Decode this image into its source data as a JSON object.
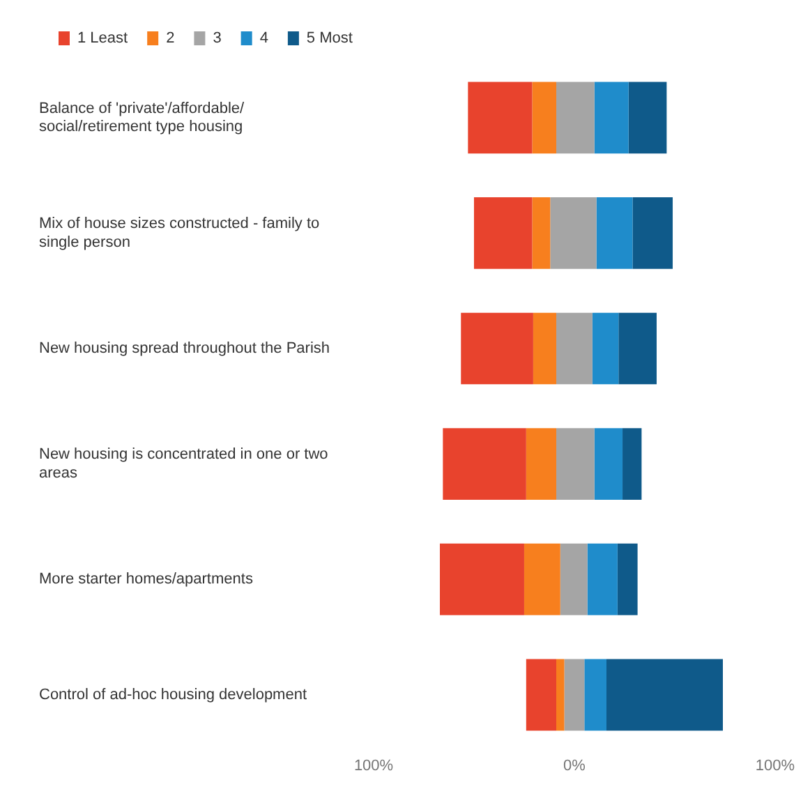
{
  "chart_data": {
    "type": "bar",
    "orientation": "horizontal",
    "categories": [
      "Balance of 'private'/affordable/ social/retirement type housing",
      "Mix of house sizes constructed - family to single person",
      "New housing spread throughout the Parish",
      "New housing is concentrated in one or two areas",
      "More starter homes/apartments",
      "Control of ad-hoc housing development"
    ],
    "series": [
      {
        "name": "1 Least",
        "color": "#e8432d",
        "base": [
          -53,
          -50,
          -56.5,
          -65.5,
          -67,
          -24
        ],
        "values": [
          32,
          29,
          36,
          41.5,
          42,
          15
        ]
      },
      {
        "name": "2",
        "color": "#f77f1e",
        "base": [
          -21,
          -21,
          -20.5,
          -24,
          -25,
          -9
        ],
        "values": [
          12,
          9,
          11.5,
          15,
          18,
          4
        ]
      },
      {
        "name": "3",
        "color": "#a5a5a5",
        "base": [
          -9,
          -12,
          -9,
          -9,
          -7,
          -5
        ],
        "values": [
          19,
          23,
          18,
          19,
          13.5,
          10
        ]
      },
      {
        "name": "4",
        "color": "#1f8ccb",
        "base": [
          10,
          11,
          9,
          10,
          6.5,
          5
        ],
        "values": [
          17,
          18,
          13,
          14,
          15,
          11
        ]
      },
      {
        "name": "5 Most",
        "color": "#0f5a8a",
        "base": [
          27,
          29,
          22,
          24,
          21.5,
          16
        ],
        "values": [
          19,
          20,
          19,
          9.5,
          10,
          58
        ]
      }
    ],
    "xlim": [
      -100,
      100
    ],
    "xticks": [
      {
        "value": -100,
        "label": "100%"
      },
      {
        "value": 0,
        "label": "0%"
      },
      {
        "value": 100,
        "label": "100%"
      }
    ],
    "grid": false,
    "legend": "top left"
  }
}
